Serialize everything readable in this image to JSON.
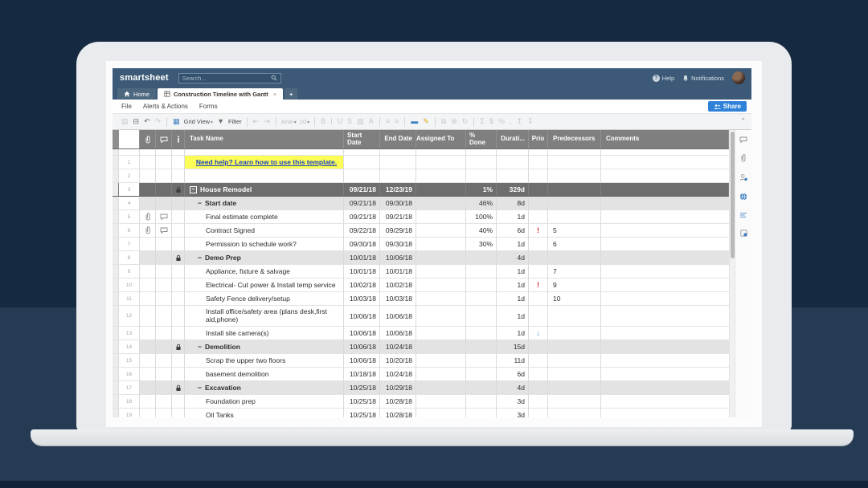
{
  "colors": {
    "background_navy": "#15294.0",
    "topbar": "#3c5a77",
    "accent_blue": "#2f82d8",
    "header_gray": "#7f7f7f",
    "parent_row_gray": "#6e6e6e",
    "section_row_gray": "#e3e3e3",
    "link_bg_yellow": "#fdfd57",
    "link_text_blue": "#1a3fc4",
    "priority_red": "#c92a2a",
    "arrow_blue": "#4a90d9"
  },
  "topbar": {
    "brand": "smartsheet",
    "search_placeholder": "Search...",
    "help_label": "Help",
    "notifications_label": "Notifications"
  },
  "tabs": {
    "home_label": "Home",
    "active_label": "Construction Timeline with Gantt",
    "close_glyph": "×",
    "add_glyph": "+"
  },
  "menus": [
    "File",
    "Alerts & Actions",
    "Forms"
  ],
  "share_label": "Share",
  "toolbar": {
    "collapse_glyph": "⌃",
    "items": [
      {
        "type": "icon",
        "name": "save-icon",
        "glyph": "▤",
        "muted": true
      },
      {
        "type": "icon",
        "name": "print-icon",
        "glyph": "⊟"
      },
      {
        "type": "icon",
        "name": "undo-icon",
        "glyph": "↶"
      },
      {
        "type": "icon",
        "name": "redo-icon",
        "glyph": "↷",
        "muted": true
      },
      {
        "type": "sep"
      },
      {
        "type": "icon",
        "name": "grid-view-icon",
        "glyph": "▦",
        "color": "#3f7fc1"
      },
      {
        "type": "label",
        "name": "view-selector",
        "text": "Grid View",
        "caret": true
      },
      {
        "type": "icon",
        "name": "filter-icon",
        "glyph": "▼"
      },
      {
        "type": "label",
        "name": "filter-button",
        "text": "Filter"
      },
      {
        "type": "sep"
      },
      {
        "type": "icon",
        "name": "outdent-icon",
        "glyph": "⇤",
        "muted": true
      },
      {
        "type": "icon",
        "name": "indent-icon",
        "glyph": "⇥",
        "muted": true
      },
      {
        "type": "sep"
      },
      {
        "type": "label",
        "name": "font-selector",
        "text": "Arial",
        "caret": true,
        "muted": true
      },
      {
        "type": "label",
        "name": "font-size-selector",
        "text": "10",
        "caret": true,
        "muted": true
      },
      {
        "type": "sep"
      },
      {
        "type": "icon",
        "name": "bold-button",
        "glyph": "B",
        "muted": true
      },
      {
        "type": "icon",
        "name": "italic-button",
        "glyph": "I",
        "muted": true
      },
      {
        "type": "icon",
        "name": "underline-button",
        "glyph": "U",
        "muted": true
      },
      {
        "type": "icon",
        "name": "strikethrough-button",
        "glyph": "S",
        "muted": true
      },
      {
        "type": "icon",
        "name": "fill-color-icon",
        "glyph": "▧",
        "muted": true
      },
      {
        "type": "icon",
        "name": "text-color-icon",
        "glyph": "A",
        "muted": true
      },
      {
        "type": "sep"
      },
      {
        "type": "icon",
        "name": "align-left-icon",
        "glyph": "≡",
        "muted": true
      },
      {
        "type": "icon",
        "name": "align-center-icon",
        "glyph": "≡",
        "muted": true
      },
      {
        "type": "sep"
      },
      {
        "type": "icon",
        "name": "card-view-icon",
        "glyph": "▬",
        "color": "#3f7fc1"
      },
      {
        "type": "icon",
        "name": "highlight-icon",
        "glyph": "✎",
        "color": "#e0a90f"
      },
      {
        "type": "sep"
      },
      {
        "type": "icon",
        "name": "link-icon",
        "glyph": "⧉",
        "muted": true
      },
      {
        "type": "icon",
        "name": "insert-icon",
        "glyph": "⊕",
        "muted": true
      },
      {
        "type": "icon",
        "name": "cell-history-icon",
        "glyph": "↻",
        "muted": true
      },
      {
        "type": "sep"
      },
      {
        "type": "icon",
        "name": "sum-icon",
        "glyph": "Σ",
        "muted": true
      },
      {
        "type": "icon",
        "name": "currency-icon",
        "glyph": "$",
        "muted": true
      },
      {
        "type": "icon",
        "name": "percent-icon",
        "glyph": "%",
        "muted": true
      },
      {
        "type": "icon",
        "name": "comma-icon",
        "glyph": ",",
        "muted": true
      },
      {
        "type": "icon",
        "name": "decimal-increase-icon",
        "glyph": "↥",
        "muted": true
      },
      {
        "type": "icon",
        "name": "decimal-decrease-icon",
        "glyph": "↧",
        "muted": true
      }
    ]
  },
  "grid": {
    "columns": {
      "task": "Task Name",
      "start": "Start Date",
      "end": "End Date",
      "assigned": "Assigned To",
      "pct": "% Done",
      "dur": "Durati...",
      "prio": "Prio",
      "pred": "Predecessors",
      "com": "Comments"
    },
    "rows": [
      {
        "num": "1",
        "kind": "link",
        "name": "Need help? Learn how to use this template.",
        "start": "",
        "end": "",
        "pct": "",
        "dur": "",
        "prio": "",
        "pred": ""
      },
      {
        "num": "2",
        "kind": "blank",
        "name": "",
        "start": "",
        "end": "",
        "pct": "",
        "dur": "",
        "prio": "",
        "pred": ""
      },
      {
        "num": "3",
        "kind": "parent",
        "name": "House Remodel",
        "lock": true,
        "start": "09/21/18",
        "end": "12/23/19",
        "pct": "1%",
        "dur": "329d",
        "prio": "",
        "pred": ""
      },
      {
        "num": "4",
        "kind": "section",
        "name": "Start date",
        "start": "09/21/18",
        "end": "09/30/18",
        "pct": "46%",
        "dur": "8d",
        "prio": "",
        "pred": ""
      },
      {
        "num": "5",
        "kind": "task",
        "name": "Final estimate complete",
        "clip": true,
        "comment": true,
        "start": "09/21/18",
        "end": "09/21/18",
        "pct": "100%",
        "dur": "1d",
        "prio": "",
        "pred": ""
      },
      {
        "num": "6",
        "kind": "task",
        "name": "Contract Signed",
        "clip": true,
        "comment": true,
        "start": "09/22/18",
        "end": "09/29/18",
        "pct": "40%",
        "dur": "6d",
        "prio": "high",
        "pred": "5"
      },
      {
        "num": "7",
        "kind": "task",
        "name": "Permission to schedule work?",
        "start": "09/30/18",
        "end": "09/30/18",
        "pct": "30%",
        "dur": "1d",
        "prio": "",
        "pred": "6"
      },
      {
        "num": "8",
        "kind": "section",
        "name": "Demo Prep",
        "lock": true,
        "start": "10/01/18",
        "end": "10/06/18",
        "pct": "",
        "dur": "4d",
        "prio": "",
        "pred": ""
      },
      {
        "num": "9",
        "kind": "task",
        "name": "Appliance, fixture & salvage",
        "start": "10/01/18",
        "end": "10/01/18",
        "pct": "",
        "dur": "1d",
        "prio": "",
        "pred": "7"
      },
      {
        "num": "10",
        "kind": "task",
        "name": "Electrical- Cut power & Install temp service",
        "start": "10/02/18",
        "end": "10/02/18",
        "pct": "",
        "dur": "1d",
        "prio": "high",
        "pred": "9"
      },
      {
        "num": "11",
        "kind": "task",
        "name": "Safety Fence delivery/setup",
        "start": "10/03/18",
        "end": "10/03/18",
        "pct": "",
        "dur": "1d",
        "prio": "",
        "pred": "10"
      },
      {
        "num": "12",
        "kind": "task",
        "tall": true,
        "name": "Install office/safety area (plans desk,first aid,phone)",
        "start": "10/06/18",
        "end": "10/06/18",
        "pct": "",
        "dur": "1d",
        "prio": "",
        "pred": ""
      },
      {
        "num": "13",
        "kind": "task",
        "name": "Install site camera(s)",
        "start": "10/06/18",
        "end": "10/06/18",
        "pct": "",
        "dur": "1d",
        "prio": "low",
        "pred": ""
      },
      {
        "num": "14",
        "kind": "section",
        "name": "Demolition",
        "lock": true,
        "start": "10/06/18",
        "end": "10/24/18",
        "pct": "",
        "dur": "15d",
        "prio": "",
        "pred": ""
      },
      {
        "num": "15",
        "kind": "task",
        "name": "Scrap the upper two floors",
        "start": "10/06/18",
        "end": "10/20/18",
        "pct": "",
        "dur": "11d",
        "prio": "",
        "pred": ""
      },
      {
        "num": "16",
        "kind": "task",
        "name": "basement demolition",
        "start": "10/18/18",
        "end": "10/24/18",
        "pct": "",
        "dur": "6d",
        "prio": "",
        "pred": ""
      },
      {
        "num": "17",
        "kind": "section",
        "name": "Excavation",
        "lock": true,
        "start": "10/25/18",
        "end": "10/29/18",
        "pct": "",
        "dur": "4d",
        "prio": "",
        "pred": ""
      },
      {
        "num": "18",
        "kind": "task",
        "name": "Foundation prep",
        "start": "10/25/18",
        "end": "10/28/18",
        "pct": "",
        "dur": "3d",
        "prio": "",
        "pred": ""
      },
      {
        "num": "19",
        "kind": "task",
        "name": "Oil Tanks",
        "start": "10/25/18",
        "end": "10/28/18",
        "pct": "",
        "dur": "3d",
        "prio": "",
        "pred": ""
      }
    ]
  },
  "rail_icons": [
    "conversations-icon",
    "attachments-icon",
    "proofs-icon",
    "publish-icon",
    "update-requests-icon",
    "activity-log-icon"
  ]
}
